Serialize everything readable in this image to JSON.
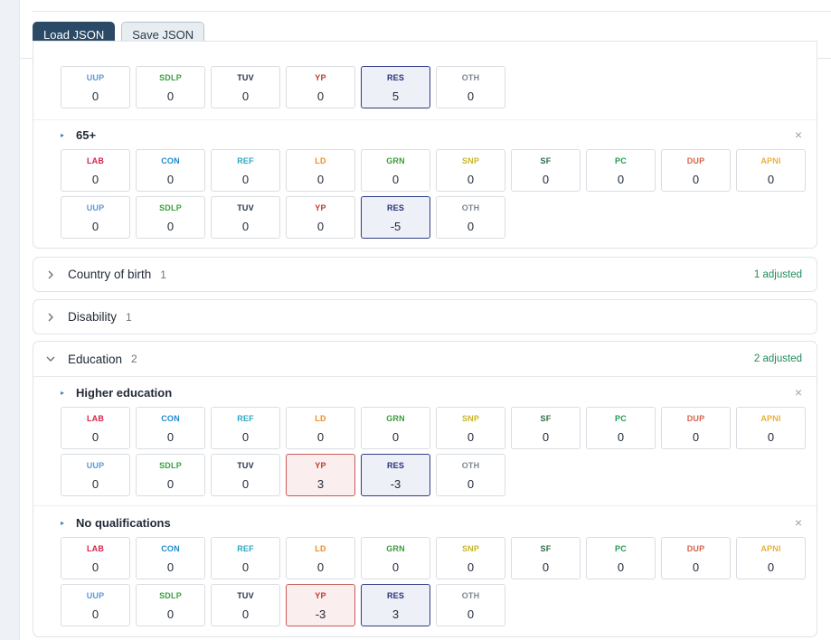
{
  "toolbar": {
    "load_label": "Load JSON",
    "save_label": "Save JSON"
  },
  "colors": {
    "primary_button": "#2a4a66",
    "adjusted_text": "#1f8a5a",
    "positive_cell_border": "#c85a5a",
    "negative_cell_border": "#2f3d84"
  },
  "age_card": {
    "partial_group": {
      "row2": [
        {
          "code": "UUP",
          "value": "0",
          "state": ""
        },
        {
          "code": "SDLP",
          "value": "0",
          "state": ""
        },
        {
          "code": "TUV",
          "value": "0",
          "state": ""
        },
        {
          "code": "YP",
          "value": "0",
          "state": ""
        },
        {
          "code": "RES",
          "value": "5",
          "state": "neg"
        },
        {
          "code": "OTH",
          "value": "0",
          "state": ""
        }
      ]
    },
    "group_65": {
      "title": "65+",
      "row1": [
        {
          "code": "LAB",
          "value": "0",
          "state": ""
        },
        {
          "code": "CON",
          "value": "0",
          "state": ""
        },
        {
          "code": "REF",
          "value": "0",
          "state": ""
        },
        {
          "code": "LD",
          "value": "0",
          "state": ""
        },
        {
          "code": "GRN",
          "value": "0",
          "state": ""
        },
        {
          "code": "SNP",
          "value": "0",
          "state": ""
        },
        {
          "code": "SF",
          "value": "0",
          "state": ""
        },
        {
          "code": "PC",
          "value": "0",
          "state": ""
        },
        {
          "code": "DUP",
          "value": "0",
          "state": ""
        },
        {
          "code": "APNI",
          "value": "0",
          "state": ""
        }
      ],
      "row2": [
        {
          "code": "UUP",
          "value": "0",
          "state": ""
        },
        {
          "code": "SDLP",
          "value": "0",
          "state": ""
        },
        {
          "code": "TUV",
          "value": "0",
          "state": ""
        },
        {
          "code": "YP",
          "value": "0",
          "state": ""
        },
        {
          "code": "RES",
          "value": "-5",
          "state": "neg"
        },
        {
          "code": "OTH",
          "value": "0",
          "state": ""
        }
      ]
    }
  },
  "country_card": {
    "title": "Country of birth",
    "count": "1",
    "adjusted": "1 adjusted"
  },
  "disability_card": {
    "title": "Disability",
    "count": "1"
  },
  "education_card": {
    "title": "Education",
    "count": "2",
    "adjusted": "2 adjusted",
    "groups": [
      {
        "title": "Higher education",
        "row1": [
          {
            "code": "LAB",
            "value": "0",
            "state": ""
          },
          {
            "code": "CON",
            "value": "0",
            "state": ""
          },
          {
            "code": "REF",
            "value": "0",
            "state": ""
          },
          {
            "code": "LD",
            "value": "0",
            "state": ""
          },
          {
            "code": "GRN",
            "value": "0",
            "state": ""
          },
          {
            "code": "SNP",
            "value": "0",
            "state": ""
          },
          {
            "code": "SF",
            "value": "0",
            "state": ""
          },
          {
            "code": "PC",
            "value": "0",
            "state": ""
          },
          {
            "code": "DUP",
            "value": "0",
            "state": ""
          },
          {
            "code": "APNI",
            "value": "0",
            "state": ""
          }
        ],
        "row2": [
          {
            "code": "UUP",
            "value": "0",
            "state": ""
          },
          {
            "code": "SDLP",
            "value": "0",
            "state": ""
          },
          {
            "code": "TUV",
            "value": "0",
            "state": ""
          },
          {
            "code": "YP",
            "value": "3",
            "state": "pos"
          },
          {
            "code": "RES",
            "value": "-3",
            "state": "neg"
          },
          {
            "code": "OTH",
            "value": "0",
            "state": ""
          }
        ]
      },
      {
        "title": "No qualifications",
        "row1": [
          {
            "code": "LAB",
            "value": "0",
            "state": ""
          },
          {
            "code": "CON",
            "value": "0",
            "state": ""
          },
          {
            "code": "REF",
            "value": "0",
            "state": ""
          },
          {
            "code": "LD",
            "value": "0",
            "state": ""
          },
          {
            "code": "GRN",
            "value": "0",
            "state": ""
          },
          {
            "code": "SNP",
            "value": "0",
            "state": ""
          },
          {
            "code": "SF",
            "value": "0",
            "state": ""
          },
          {
            "code": "PC",
            "value": "0",
            "state": ""
          },
          {
            "code": "DUP",
            "value": "0",
            "state": ""
          },
          {
            "code": "APNI",
            "value": "0",
            "state": ""
          }
        ],
        "row2": [
          {
            "code": "UUP",
            "value": "0",
            "state": ""
          },
          {
            "code": "SDLP",
            "value": "0",
            "state": ""
          },
          {
            "code": "TUV",
            "value": "0",
            "state": ""
          },
          {
            "code": "YP",
            "value": "-3",
            "state": "pos"
          },
          {
            "code": "RES",
            "value": "3",
            "state": "neg"
          },
          {
            "code": "OTH",
            "value": "0",
            "state": ""
          }
        ]
      }
    ]
  }
}
